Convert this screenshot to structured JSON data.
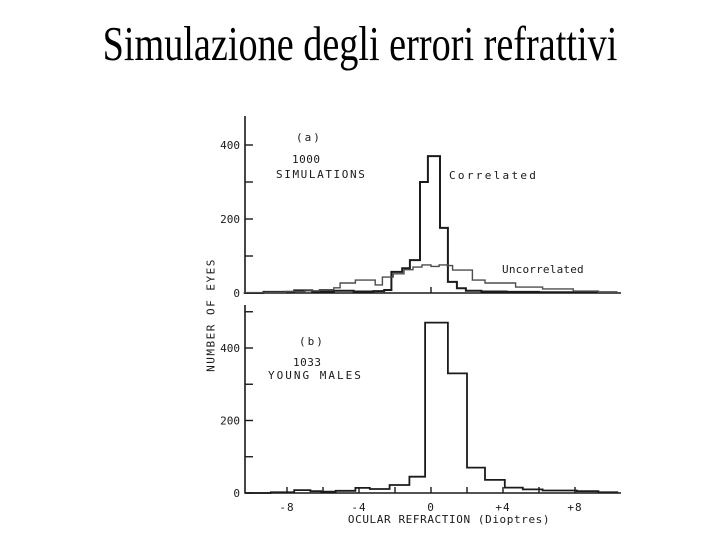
{
  "slide": {
    "title": "Simulazione degli errori refrattivi"
  },
  "colors": {
    "ink": "#1a1a1a",
    "correlated": "#1b1b1b",
    "uncorrelated": "#4d4d4d",
    "young_males": "#1b1b1b"
  },
  "chart_data": [
    {
      "type": "bar",
      "subtype": "step-outline-histogram",
      "panel_label": "(a)",
      "n_label": "1000",
      "subject_label": "SIMULATIONS",
      "xlabel": "OCULAR REFRACTION (Dioptres)",
      "ylabel": "NUMBER OF EYES",
      "xlim": [
        -10.4,
        10.6
      ],
      "ylim": [
        0,
        480
      ],
      "grid": false,
      "yticks": [
        {
          "value": 400,
          "label": "400"
        },
        {
          "value": 300,
          "label": ""
        },
        {
          "value": 200,
          "label": "200"
        },
        {
          "value": 100,
          "label": ""
        },
        {
          "value": 0,
          "label": "0"
        }
      ],
      "xticks": [
        {
          "value": 0,
          "label": ""
        }
      ],
      "series": [
        {
          "name": "Correlated",
          "color": "#1b1b1b",
          "steps": [
            [
              -10.4,
              0
            ],
            [
              -9.3,
              3
            ],
            [
              -7.6,
              7
            ],
            [
              -6.6,
              4
            ],
            [
              -5.4,
              6
            ],
            [
              -4.3,
              4
            ],
            [
              -3.2,
              5
            ],
            [
              -2.6,
              8
            ],
            [
              -2.2,
              57
            ],
            [
              -1.6,
              67
            ],
            [
              -1.17,
              89
            ],
            [
              -0.61,
              300
            ],
            [
              -0.17,
              370
            ],
            [
              0.5,
              176
            ],
            [
              0.94,
              30
            ],
            [
              1.44,
              13
            ],
            [
              1.94,
              6
            ],
            [
              2.8,
              4
            ],
            [
              4.2,
              3
            ],
            [
              6.0,
              2
            ],
            [
              8.0,
              2
            ],
            [
              10.3,
              0
            ]
          ]
        },
        {
          "name": "Uncorrelated",
          "color": "#4d4d4d",
          "steps": [
            [
              -10.4,
              1
            ],
            [
              -9.2,
              2
            ],
            [
              -8.1,
              4
            ],
            [
              -7.0,
              6
            ],
            [
              -6.2,
              9
            ],
            [
              -5.4,
              14
            ],
            [
              -5.05,
              27
            ],
            [
              -4.2,
              35
            ],
            [
              -3.1,
              22
            ],
            [
              -2.7,
              43
            ],
            [
              -2.1,
              52
            ],
            [
              -1.5,
              63
            ],
            [
              -1.0,
              70
            ],
            [
              -0.5,
              76
            ],
            [
              0.0,
              72
            ],
            [
              0.45,
              76
            ],
            [
              0.9,
              74
            ],
            [
              1.2,
              62
            ],
            [
              2.3,
              35
            ],
            [
              3.0,
              27
            ],
            [
              4.7,
              16
            ],
            [
              6.2,
              11
            ],
            [
              7.9,
              5
            ],
            [
              9.3,
              2
            ],
            [
              10.3,
              0
            ]
          ]
        }
      ]
    },
    {
      "type": "bar",
      "subtype": "step-outline-histogram",
      "panel_label": "(b)",
      "n_label": "1033",
      "subject_label": "YOUNG MALES",
      "xlabel": "OCULAR REFRACTION (Dioptres)",
      "ylabel": "NUMBER OF EYES",
      "xlim": [
        -10.4,
        10.6
      ],
      "ylim": [
        0,
        520
      ],
      "grid": false,
      "yticks": [
        {
          "value": 500,
          "label": ""
        },
        {
          "value": 400,
          "label": "400"
        },
        {
          "value": 300,
          "label": ""
        },
        {
          "value": 200,
          "label": "200"
        },
        {
          "value": 100,
          "label": ""
        },
        {
          "value": 0,
          "label": "0"
        }
      ],
      "xticks": [
        {
          "value": -8,
          "label": "-8"
        },
        {
          "value": -6,
          "label": ""
        },
        {
          "value": -4,
          "label": "-4"
        },
        {
          "value": -2,
          "label": ""
        },
        {
          "value": 0,
          "label": "0"
        },
        {
          "value": 2,
          "label": ""
        },
        {
          "value": 4,
          "label": "+4"
        },
        {
          "value": 6,
          "label": ""
        },
        {
          "value": 8,
          "label": "+8"
        }
      ],
      "series": [
        {
          "name": "1033 young males",
          "color": "#1b1b1b",
          "steps": [
            [
              -10.3,
              0
            ],
            [
              -8.9,
              2
            ],
            [
              -7.6,
              8
            ],
            [
              -6.7,
              5
            ],
            [
              -6.1,
              4
            ],
            [
              -5.3,
              6
            ],
            [
              -4.2,
              14
            ],
            [
              -3.4,
              11
            ],
            [
              -2.3,
              22
            ],
            [
              -1.2,
              45
            ],
            [
              -0.33,
              470
            ],
            [
              0.94,
              330
            ],
            [
              2.0,
              70
            ],
            [
              3.0,
              36
            ],
            [
              4.1,
              15
            ],
            [
              5.1,
              10
            ],
            [
              6.2,
              7
            ],
            [
              8.1,
              5
            ],
            [
              9.3,
              2
            ],
            [
              10.35,
              0
            ]
          ]
        }
      ]
    }
  ]
}
